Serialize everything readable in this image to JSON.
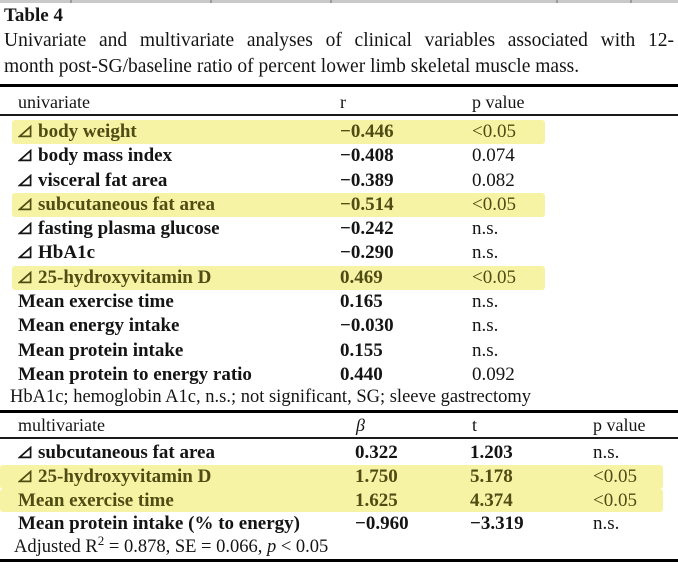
{
  "header": {
    "table_label": "Table 4",
    "caption_line1": "Univariate and multivariate analyses of clinical variables associated with 12-",
    "caption_line2": "month post-SG/baseline ratio of percent lower limb skeletal muscle mass."
  },
  "univariate": {
    "headers": {
      "col1": "univariate",
      "col2": "r",
      "col3": "p value"
    },
    "rows": [
      {
        "delta": true,
        "label": "body weight",
        "r": "−0.446",
        "p": "<0.05",
        "highlight": true
      },
      {
        "delta": true,
        "label": "body mass index",
        "r": "−0.408",
        "p": "0.074",
        "highlight": false
      },
      {
        "delta": true,
        "label": "visceral fat area",
        "r": "−0.389",
        "p": "0.082",
        "highlight": false
      },
      {
        "delta": true,
        "label": "subcutaneous fat area",
        "r": "−0.514",
        "p": "<0.05",
        "highlight": true
      },
      {
        "delta": true,
        "label": "fasting plasma glucose",
        "r": "−0.242",
        "p": "n.s.",
        "highlight": false
      },
      {
        "delta": true,
        "label": "HbA1c",
        "r": "−0.290",
        "p": "n.s.",
        "highlight": false
      },
      {
        "delta": true,
        "label": "25-hydroxyvitamin D",
        "r": "0.469",
        "p": "<0.05",
        "highlight": true
      },
      {
        "delta": false,
        "label": "Mean exercise time",
        "r": "0.165",
        "p": "n.s.",
        "highlight": false
      },
      {
        "delta": false,
        "label": "Mean energy intake",
        "r": "−0.030",
        "p": "n.s.",
        "highlight": false
      },
      {
        "delta": false,
        "label": "Mean protein intake",
        "r": "0.155",
        "p": "n.s.",
        "highlight": false
      },
      {
        "delta": false,
        "label": "Mean protein to energy ratio",
        "r": "0.440",
        "p": "0.092",
        "highlight": false
      }
    ],
    "footnote": "HbA1c; hemoglobin A1c, n.s.; not significant, SG; sleeve gastrectomy"
  },
  "multivariate": {
    "headers": {
      "col1": "multivariate",
      "col2": "β",
      "col3": "t",
      "col4": "p value"
    },
    "rows": [
      {
        "delta": true,
        "label": "subcutaneous fat area",
        "beta": "0.322",
        "t": "1.203",
        "p": "n.s.",
        "highlight": false
      },
      {
        "delta": true,
        "label": "25-hydroxyvitamin D",
        "beta": "1.750",
        "t": "5.178",
        "p": "<0.05",
        "highlight": true
      },
      {
        "delta": false,
        "label": "Mean exercise time",
        "beta": "1.625",
        "t": "4.374",
        "p": "<0.05",
        "highlight": true
      },
      {
        "delta": false,
        "label": "Mean protein intake (% to energy)",
        "beta": "−0.960",
        "t": "−3.319",
        "p": "n.s.",
        "highlight": false
      }
    ],
    "footnote": {
      "pre": "Adjusted R",
      "sup": "2",
      "mid": " = 0.878, SE = 0.066, ",
      "p_italic": "p",
      "tail": " < 0.05"
    }
  },
  "colors": {
    "highlight": "#f7f3a4",
    "highlight_text": "#4f4c14",
    "text": "#141414"
  }
}
